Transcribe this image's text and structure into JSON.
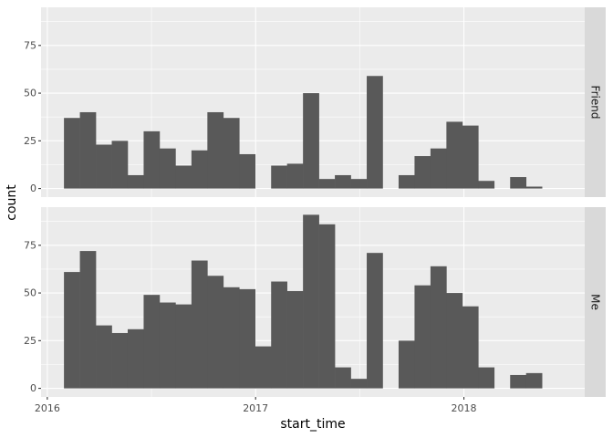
{
  "chart_data": {
    "type": "bar",
    "subtype": "faceted-histogram",
    "facet_layout": "rows",
    "xlabel": "start_time",
    "ylabel": "count",
    "x_ticks": [
      {
        "label": "2016",
        "value": 2016.0
      },
      {
        "label": "2017",
        "value": 2017.0
      },
      {
        "label": "2018",
        "value": 2018.0
      }
    ],
    "xlim": [
      2015.97,
      2018.58
    ],
    "y_ticks": [
      0,
      25,
      50,
      75
    ],
    "ylim": [
      -4.5,
      95
    ],
    "grid": true,
    "bins": {
      "start": 2016.08,
      "width": 0.0765,
      "count": 30
    },
    "panels": [
      {
        "name": "Friend",
        "values": [
          37,
          40,
          23,
          25,
          7,
          30,
          21,
          12,
          20,
          40,
          37,
          18,
          0,
          12,
          13,
          50,
          5,
          7,
          5,
          59,
          0,
          7,
          17,
          21,
          35,
          33,
          4,
          0,
          6,
          1
        ]
      },
      {
        "name": "Me",
        "values": [
          61,
          72,
          33,
          29,
          31,
          49,
          45,
          44,
          67,
          59,
          53,
          52,
          22,
          56,
          51,
          91,
          86,
          11,
          5,
          71,
          0,
          25,
          54,
          64,
          50,
          43,
          11,
          0,
          7,
          8
        ]
      }
    ]
  }
}
